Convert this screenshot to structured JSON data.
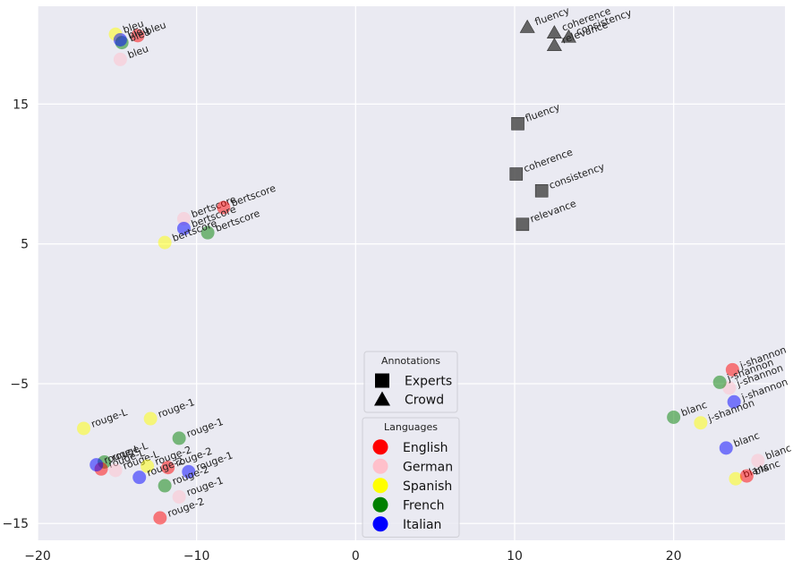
{
  "chart_data": {
    "type": "scatter",
    "title": "",
    "xlabel": "",
    "ylabel": "",
    "xlim": [
      -20,
      27
    ],
    "ylim": [
      -16.2,
      22
    ],
    "xticks": [
      -20,
      -10,
      0,
      10,
      20
    ],
    "xtick_labels": [
      "−20",
      "−10",
      "0",
      "10",
      "20"
    ],
    "yticks": [
      -15,
      -5,
      5,
      15
    ],
    "ytick_labels": [
      "−15",
      "−5",
      "5",
      "15"
    ],
    "grid": true,
    "colors": {
      "English": "#ff0000",
      "German": "#ffc0cb",
      "Spanish": "#ffff00",
      "French": "#008000",
      "Italian": "#0000ff",
      "annotation": "#555555",
      "background": "#eaeaf2",
      "grid": "#ffffff"
    },
    "legend_annotations": {
      "title": "Annotations",
      "placement": "bottom-center",
      "items": [
        {
          "label": "Experts",
          "marker": "square"
        },
        {
          "label": "Crowd",
          "marker": "triangle"
        }
      ]
    },
    "legend_languages": {
      "title": "Languages",
      "placement": "bottom-center",
      "items": [
        {
          "label": "English",
          "color": "#ff0000"
        },
        {
          "label": "German",
          "color": "#ffc0cb"
        },
        {
          "label": "Spanish",
          "color": "#ffff00"
        },
        {
          "label": "French",
          "color": "#008000"
        },
        {
          "label": "Italian",
          "color": "#0000ff"
        }
      ]
    },
    "annotation_points": [
      {
        "label": "fluency",
        "group": "Crowd",
        "marker": "triangle",
        "x": 10.8,
        "y": 20.5
      },
      {
        "label": "coherence",
        "group": "Crowd",
        "marker": "triangle",
        "x": 12.5,
        "y": 20.1
      },
      {
        "label": "consistency",
        "group": "Crowd",
        "marker": "triangle",
        "x": 13.4,
        "y": 19.8
      },
      {
        "label": "relevance",
        "group": "Crowd",
        "marker": "triangle",
        "x": 12.5,
        "y": 19.2
      },
      {
        "label": "fluency",
        "group": "Experts",
        "marker": "square",
        "x": 10.2,
        "y": 13.6
      },
      {
        "label": "coherence",
        "group": "Experts",
        "marker": "square",
        "x": 10.1,
        "y": 10.0
      },
      {
        "label": "consistency",
        "group": "Experts",
        "marker": "square",
        "x": 11.7,
        "y": 8.8
      },
      {
        "label": "relevance",
        "group": "Experts",
        "marker": "square",
        "x": 10.5,
        "y": 6.4
      }
    ],
    "language_points": [
      {
        "label": "bleu",
        "lang": "Spanish",
        "x": -15.1,
        "y": 20.0
      },
      {
        "label": "bleu",
        "lang": "English",
        "x": -13.7,
        "y": 19.9
      },
      {
        "label": "bleu",
        "lang": "French",
        "x": -14.7,
        "y": 19.4
      },
      {
        "label": "bleu",
        "lang": "Italian",
        "x": -14.8,
        "y": 19.6
      },
      {
        "label": "bleu",
        "lang": "German",
        "x": -14.8,
        "y": 18.2
      },
      {
        "label": "bertscore",
        "lang": "German",
        "x": -10.8,
        "y": 6.8
      },
      {
        "label": "bertscore",
        "lang": "English",
        "x": -8.3,
        "y": 7.6
      },
      {
        "label": "bertscore",
        "lang": "Italian",
        "x": -10.8,
        "y": 6.1
      },
      {
        "label": "bertscore",
        "lang": "French",
        "x": -9.3,
        "y": 5.8
      },
      {
        "label": "bertscore",
        "lang": "Spanish",
        "x": -12.0,
        "y": 5.1
      },
      {
        "label": "rouge-L",
        "lang": "Spanish",
        "x": -17.1,
        "y": -8.2
      },
      {
        "label": "rouge-L",
        "lang": "French",
        "x": -15.8,
        "y": -10.6
      },
      {
        "label": "rouge-L",
        "lang": "English",
        "x": -16.0,
        "y": -11.1
      },
      {
        "label": "rouge-L",
        "lang": "Italian",
        "x": -16.3,
        "y": -10.8
      },
      {
        "label": "rouge-L",
        "lang": "German",
        "x": -15.1,
        "y": -11.2
      },
      {
        "label": "rouge-1",
        "lang": "Spanish",
        "x": -12.9,
        "y": -7.5
      },
      {
        "label": "rouge-1",
        "lang": "French",
        "x": -11.1,
        "y": -8.9
      },
      {
        "label": "rouge-1",
        "lang": "Italian",
        "x": -10.5,
        "y": -11.3
      },
      {
        "label": "rouge-1",
        "lang": "German",
        "x": -11.1,
        "y": -13.1
      },
      {
        "label": "rouge-2",
        "lang": "Spanish",
        "x": -13.1,
        "y": -10.9
      },
      {
        "label": "rouge-2",
        "lang": "English",
        "x": -11.8,
        "y": -11.0
      },
      {
        "label": "rouge-2",
        "lang": "Italian",
        "x": -13.6,
        "y": -11.7
      },
      {
        "label": "rouge-2",
        "lang": "French",
        "x": -12.0,
        "y": -12.3
      },
      {
        "label": "rouge-2",
        "lang": "English",
        "x": -12.3,
        "y": -14.6
      },
      {
        "label": "j-shannon",
        "lang": "English",
        "x": 23.7,
        "y": -4.0
      },
      {
        "label": "j-shannon",
        "lang": "German",
        "x": 23.5,
        "y": -5.3
      },
      {
        "label": "j-shannon",
        "lang": "French",
        "x": 22.9,
        "y": -4.9
      },
      {
        "label": "j-shannon",
        "lang": "Italian",
        "x": 23.8,
        "y": -6.3
      },
      {
        "label": "j-shannon",
        "lang": "Spanish",
        "x": 21.7,
        "y": -7.8
      },
      {
        "label": "blanc",
        "lang": "French",
        "x": 20.0,
        "y": -7.4
      },
      {
        "label": "blanc",
        "lang": "Italian",
        "x": 23.3,
        "y": -9.6
      },
      {
        "label": "blanc",
        "lang": "German",
        "x": 25.3,
        "y": -10.5
      },
      {
        "label": "blanc",
        "lang": "Spanish",
        "x": 23.9,
        "y": -11.8
      },
      {
        "label": "blanc",
        "lang": "English",
        "x": 24.6,
        "y": -11.6
      }
    ]
  }
}
